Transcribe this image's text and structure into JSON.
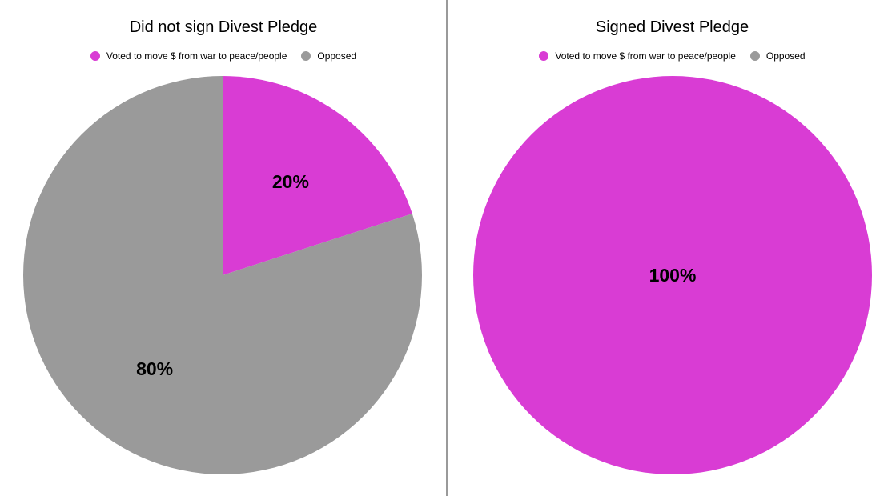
{
  "chart_data": [
    {
      "type": "pie",
      "title": "Did not sign Divest Pledge",
      "legend_position": "top-center",
      "categories": [
        "Voted to move $ from war to peace/people",
        "Opposed"
      ],
      "values": [
        20,
        80
      ],
      "labels": [
        "20%",
        "80%"
      ],
      "colors": [
        "#d93cd4",
        "#9a9a9a"
      ]
    },
    {
      "type": "pie",
      "title": "Signed Divest Pledge",
      "legend_position": "top-center",
      "categories": [
        "Voted to move $ from war to peace/people",
        "Opposed"
      ],
      "values": [
        100,
        0
      ],
      "labels": [
        "100%",
        ""
      ],
      "colors": [
        "#d93cd4",
        "#9a9a9a"
      ]
    }
  ]
}
